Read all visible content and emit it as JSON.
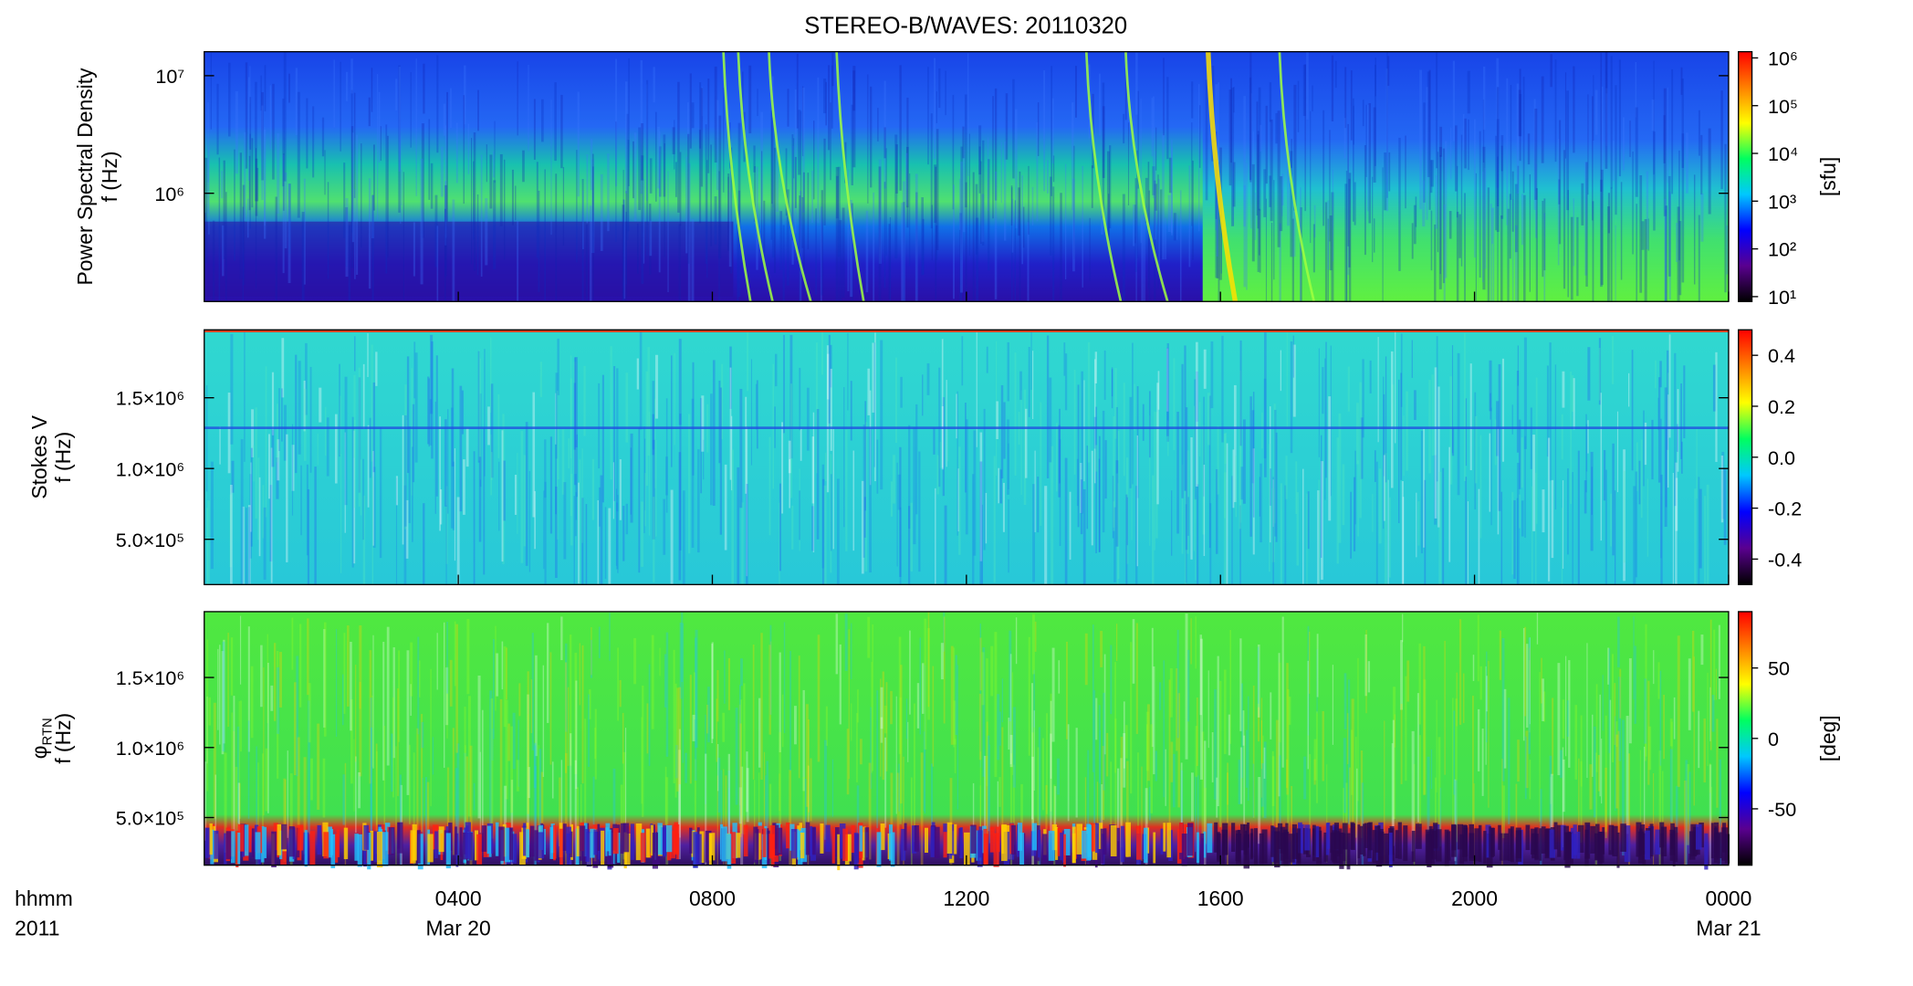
{
  "chart_data": [
    {
      "type": "spectrogram",
      "title": "STEREO-B/WAVES: 20110320",
      "ylabel": [
        "Power Spectral Density",
        "f (Hz)"
      ],
      "ylog": true,
      "ylim": [
        120000,
        16000000
      ],
      "yticks": [
        {
          "value": 1000000,
          "label": "10⁶"
        },
        {
          "value": 10000000,
          "label": "10⁷"
        }
      ],
      "xlim": [
        0,
        24
      ],
      "colorbar": {
        "label": "[sfu]",
        "log": true,
        "lim": [
          7.9,
          1350000
        ],
        "ticks": [
          {
            "value": 10,
            "label": "10¹"
          },
          {
            "value": 100,
            "label": "10²"
          },
          {
            "value": 1000,
            "label": "10³"
          },
          {
            "value": 10000,
            "label": "10⁴"
          },
          {
            "value": 100000,
            "label": "10⁵"
          },
          {
            "value": 1000000,
            "label": "10⁶"
          }
        ],
        "colors": [
          "#000000",
          "#5a0090",
          "#0000ff",
          "#00c8ff",
          "#00ff60",
          "#ffff00",
          "#ff8000",
          "#ff0000"
        ]
      }
    },
    {
      "type": "spectrogram",
      "ylabel": [
        "Stokes V",
        "f (Hz)"
      ],
      "ylog": false,
      "ylim": [
        180000,
        1980000
      ],
      "yticks": [
        {
          "value": 500000,
          "label": "5.0×10⁵"
        },
        {
          "value": 1000000,
          "label": "1.0×10⁶"
        },
        {
          "value": 1500000,
          "label": "1.5×10⁶"
        }
      ],
      "xlim": [
        0,
        24
      ],
      "colorbar": {
        "log": false,
        "lim": [
          -0.5,
          0.5
        ],
        "ticks": [
          -0.4,
          -0.2,
          {
            "value": 0,
            "label": "0.0"
          },
          0.2,
          0.4
        ],
        "colors": [
          "#000000",
          "#5a0090",
          "#0000ff",
          "#00c8ff",
          "#00ff60",
          "#ffff00",
          "#ff8000",
          "#ff0000"
        ]
      }
    },
    {
      "type": "spectrogram",
      "ylabel": [
        [
          "φ",
          "RTN"
        ],
        "f (Hz)"
      ],
      "ylog": false,
      "ylim": [
        160000,
        1970000
      ],
      "yticks": [
        {
          "value": 500000,
          "label": "5.0×10⁵"
        },
        {
          "value": 1000000,
          "label": "1.0×10⁶"
        },
        {
          "value": 1500000,
          "label": "1.5×10⁶"
        }
      ],
      "xlim": [
        0,
        24
      ],
      "xticks": [
        {
          "value": 4,
          "label": "0400"
        },
        {
          "value": 8,
          "label": "0800"
        },
        {
          "value": 12,
          "label": "1200"
        },
        {
          "value": 16,
          "label": "1600"
        },
        {
          "value": 20,
          "label": "2000"
        },
        {
          "value": 24,
          "label": "0000"
        }
      ],
      "xdates": [
        {
          "value": 4,
          "label": "Mar 20"
        },
        {
          "value": 24,
          "label": "Mar 21"
        }
      ],
      "xlabel": [
        "hhmm",
        "2011"
      ],
      "colorbar": {
        "label": "[deg]",
        "log": false,
        "lim": [
          -90,
          90
        ],
        "ticks": [
          -50,
          0,
          50
        ],
        "colors": [
          "#000000",
          "#5a0090",
          "#0000ff",
          "#00c8ff",
          "#00ff60",
          "#ffff00",
          "#ff8000",
          "#ff0000"
        ]
      }
    }
  ]
}
